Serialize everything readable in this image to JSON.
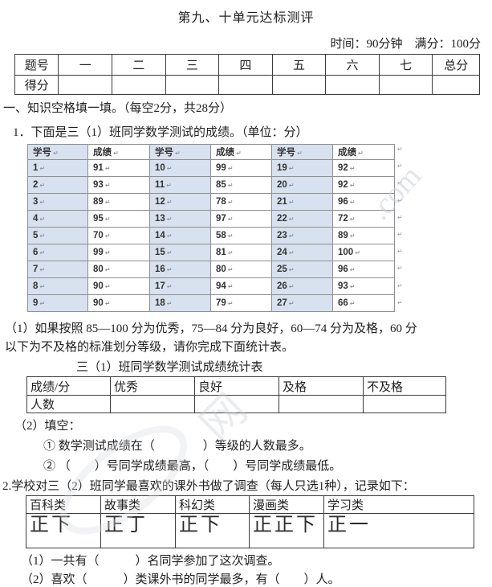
{
  "page": {
    "title": "第九、十单元达标测评",
    "meta": "时间：90分钟　满分：100分"
  },
  "score_table": {
    "headers": [
      "题号",
      "一",
      "二",
      "三",
      "四",
      "五",
      "六",
      "七",
      "总分"
    ],
    "row_label": "得分"
  },
  "section_one": {
    "heading": "一、知识空格填一填。（每空2分，共28分）",
    "q1_text": "1．下面是三（1）班同学数学测试的成绩。（单位：分）",
    "grades_table": {
      "headers": [
        "学号",
        "成绩",
        "学号",
        "成绩",
        "学号",
        "成绩"
      ],
      "rows": [
        [
          "1",
          "91",
          "10",
          "99",
          "19",
          "92"
        ],
        [
          "2",
          "93",
          "11",
          "85",
          "20",
          "92"
        ],
        [
          "3",
          "89",
          "12",
          "78",
          "21",
          "96"
        ],
        [
          "4",
          "95",
          "13",
          "97",
          "22",
          "72"
        ],
        [
          "5",
          "70",
          "14",
          "58",
          "23",
          "89"
        ],
        [
          "6",
          "99",
          "15",
          "81",
          "24",
          "100"
        ],
        [
          "7",
          "80",
          "16",
          "80",
          "25",
          "96"
        ],
        [
          "8",
          "90",
          "17",
          "94",
          "26",
          "93"
        ],
        [
          "9",
          "90",
          "18",
          "79",
          "27",
          "66"
        ]
      ]
    },
    "criteria_line1": "（1）如果按照 85—100 分为优秀，75—84 分为良好，60—74 分为及格，60 分",
    "criteria_line2": "以下为不及格的标准划分等级，请你完成下面统计表。",
    "stats_title": "三（1）班同学数学测试成绩统计表",
    "stats_table": {
      "headers": [
        "成绩/分",
        "优秀",
        "良好",
        "及格",
        "不及格"
      ],
      "row_label": "人数"
    },
    "part2_label": "（2）填空：",
    "part2_items": [
      "① 数学测试成绩在（　　　　）等级的人数最多。",
      "② （　　）号同学成绩最高，（　　）号同学成绩最低。"
    ]
  },
  "question_two": {
    "text": "2.学校对三（2）班同学最喜欢的课外书做了调查（每人只选1种），记录如下：",
    "tally_table": {
      "headers": [
        "百科类",
        "故事类",
        "科幻类",
        "漫画类",
        "学习类"
      ],
      "tallies": [
        "正下",
        "正丁",
        "正下",
        "正正下",
        "正一"
      ],
      "counts": [
        8,
        7,
        8,
        13,
        6
      ]
    },
    "sub_questions": [
      "（1）一共有（　　　）名同学参加了这次调查。",
      "（2）喜欢（　　　）类课外书的同学最多，有（　　）人。"
    ]
  },
  "marks": {
    "pilcrow": "↵"
  },
  "watermark": {
    "texts": [
      ".com",
      "网"
    ]
  },
  "colors": {
    "student_id_shade": "#d7e1ef",
    "table_border": "#3c3c3c",
    "grades_border": "#8f8f8f",
    "text": "#1f1f1f",
    "watermark": "#c9cfd8"
  }
}
